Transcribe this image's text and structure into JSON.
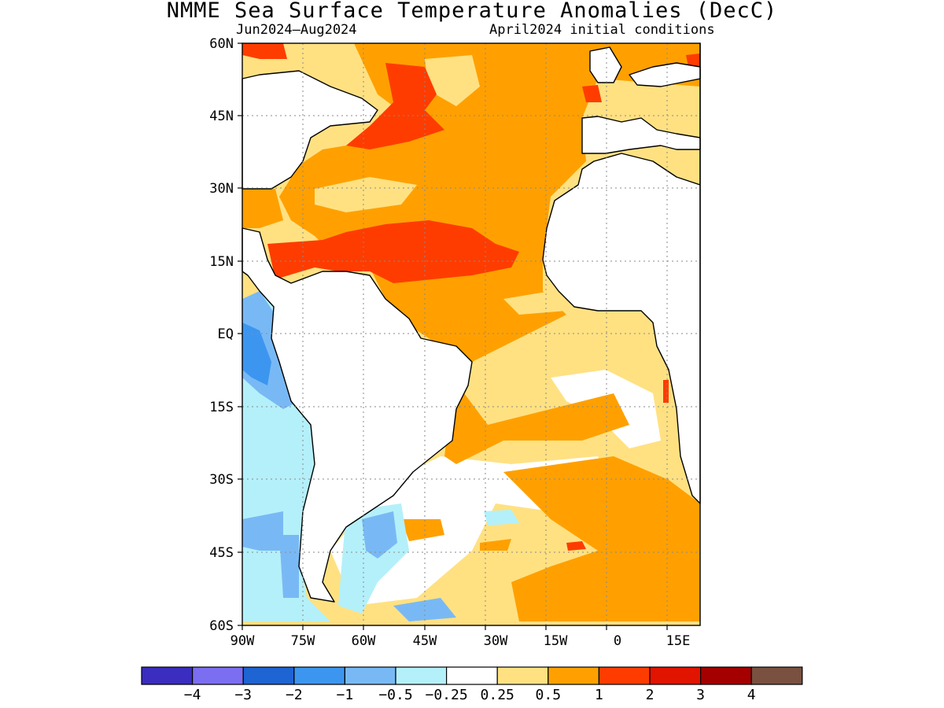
{
  "title": "NMME Sea Surface Temperature Anomalies (DecC)",
  "subtitle_left": "Jun2024—Aug2024",
  "subtitle_right": "April2024 initial conditions",
  "map": {
    "lat_labels": [
      "60N",
      "45N",
      "30N",
      "15N",
      "EQ",
      "15S",
      "30S",
      "45S",
      "60S"
    ],
    "lon_labels": [
      "90W",
      "75W",
      "60W",
      "45W",
      "30W",
      "15W",
      "0",
      "15E"
    ],
    "grid": "dotted",
    "land_color": "#ffffff",
    "coast_color": "#000000"
  },
  "colorbar": {
    "colors": [
      "#3a2dbf",
      "#7c6ef0",
      "#1e64d2",
      "#3c96f0",
      "#78b9f5",
      "#b4f0fa",
      "#ffffff",
      "#ffe182",
      "#ffa000",
      "#ff3c00",
      "#e11400",
      "#a50000",
      "#7a5040"
    ],
    "labels": [
      "−4",
      "−3",
      "−2",
      "−1",
      "−0.5",
      "−0.25",
      "0.25",
      "0.5",
      "1",
      "2",
      "3",
      "4"
    ]
  }
}
